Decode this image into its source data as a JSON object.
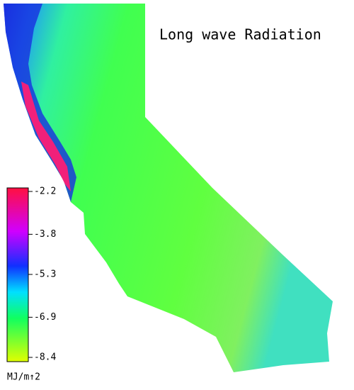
{
  "title": "Long wave Radiation",
  "legend": {
    "unit": "MJ/m↑2",
    "range": [
      -8.4,
      -2.2
    ],
    "ticks": [
      -2.2,
      -3.8,
      -5.3,
      -6.9,
      -8.4
    ]
  }
}
